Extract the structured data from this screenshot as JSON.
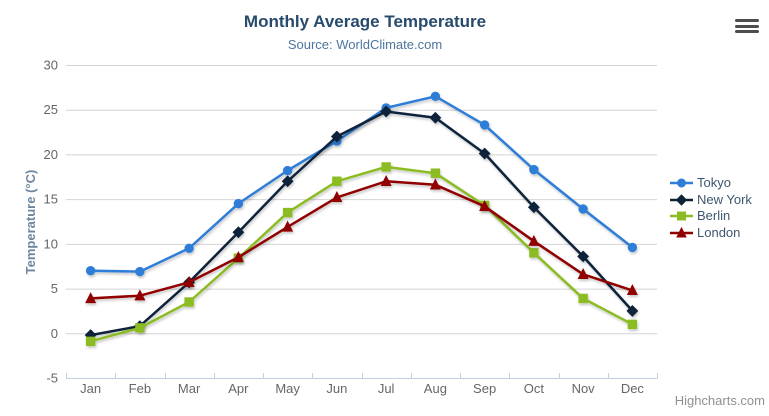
{
  "header": {
    "title": "Monthly Average Temperature",
    "subtitle": "Source: WorldClimate.com"
  },
  "credits": "Highcharts.com",
  "icons": {
    "export_menu": "hamburger-icon"
  },
  "colors": {
    "title": "#274b6d",
    "subtitle": "#4d759e",
    "axis_title": "#6d869f",
    "axis_label": "#666666",
    "gridline": "#d4d4d4",
    "axis_line": "#c0d0e0",
    "legend_text": "#3e576f",
    "credits_text": "#909090",
    "background": "#ffffff"
  },
  "chart_data": {
    "type": "line",
    "title": "Monthly Average Temperature",
    "subtitle": "Source: WorldClimate.com",
    "xlabel": "",
    "ylabel": "Temperature (°C)",
    "categories": [
      "Jan",
      "Feb",
      "Mar",
      "Apr",
      "May",
      "Jun",
      "Jul",
      "Aug",
      "Sep",
      "Oct",
      "Nov",
      "Dec"
    ],
    "ylim": [
      -5,
      30
    ],
    "yticks": [
      -5,
      0,
      5,
      10,
      15,
      20,
      25,
      30
    ],
    "grid": true,
    "legend_position": "right",
    "series": [
      {
        "name": "Tokyo",
        "color": "#2f7ed8",
        "marker": "circle",
        "values": [
          7.0,
          6.9,
          9.5,
          14.5,
          18.2,
          21.5,
          25.2,
          26.5,
          23.3,
          18.3,
          13.9,
          9.6
        ]
      },
      {
        "name": "New York",
        "color": "#0d233a",
        "marker": "diamond",
        "values": [
          -0.2,
          0.8,
          5.7,
          11.3,
          17.0,
          22.0,
          24.8,
          24.1,
          20.1,
          14.1,
          8.6,
          2.5
        ]
      },
      {
        "name": "Berlin",
        "color": "#8bbc21",
        "marker": "square",
        "values": [
          -0.9,
          0.6,
          3.5,
          8.4,
          13.5,
          17.0,
          18.6,
          17.9,
          14.3,
          9.0,
          3.9,
          1.0
        ]
      },
      {
        "name": "London",
        "color": "#910000",
        "marker": "triangle",
        "values": [
          3.9,
          4.2,
          5.7,
          8.5,
          11.9,
          15.2,
          17.0,
          16.6,
          14.2,
          10.3,
          6.6,
          4.8
        ]
      }
    ]
  }
}
